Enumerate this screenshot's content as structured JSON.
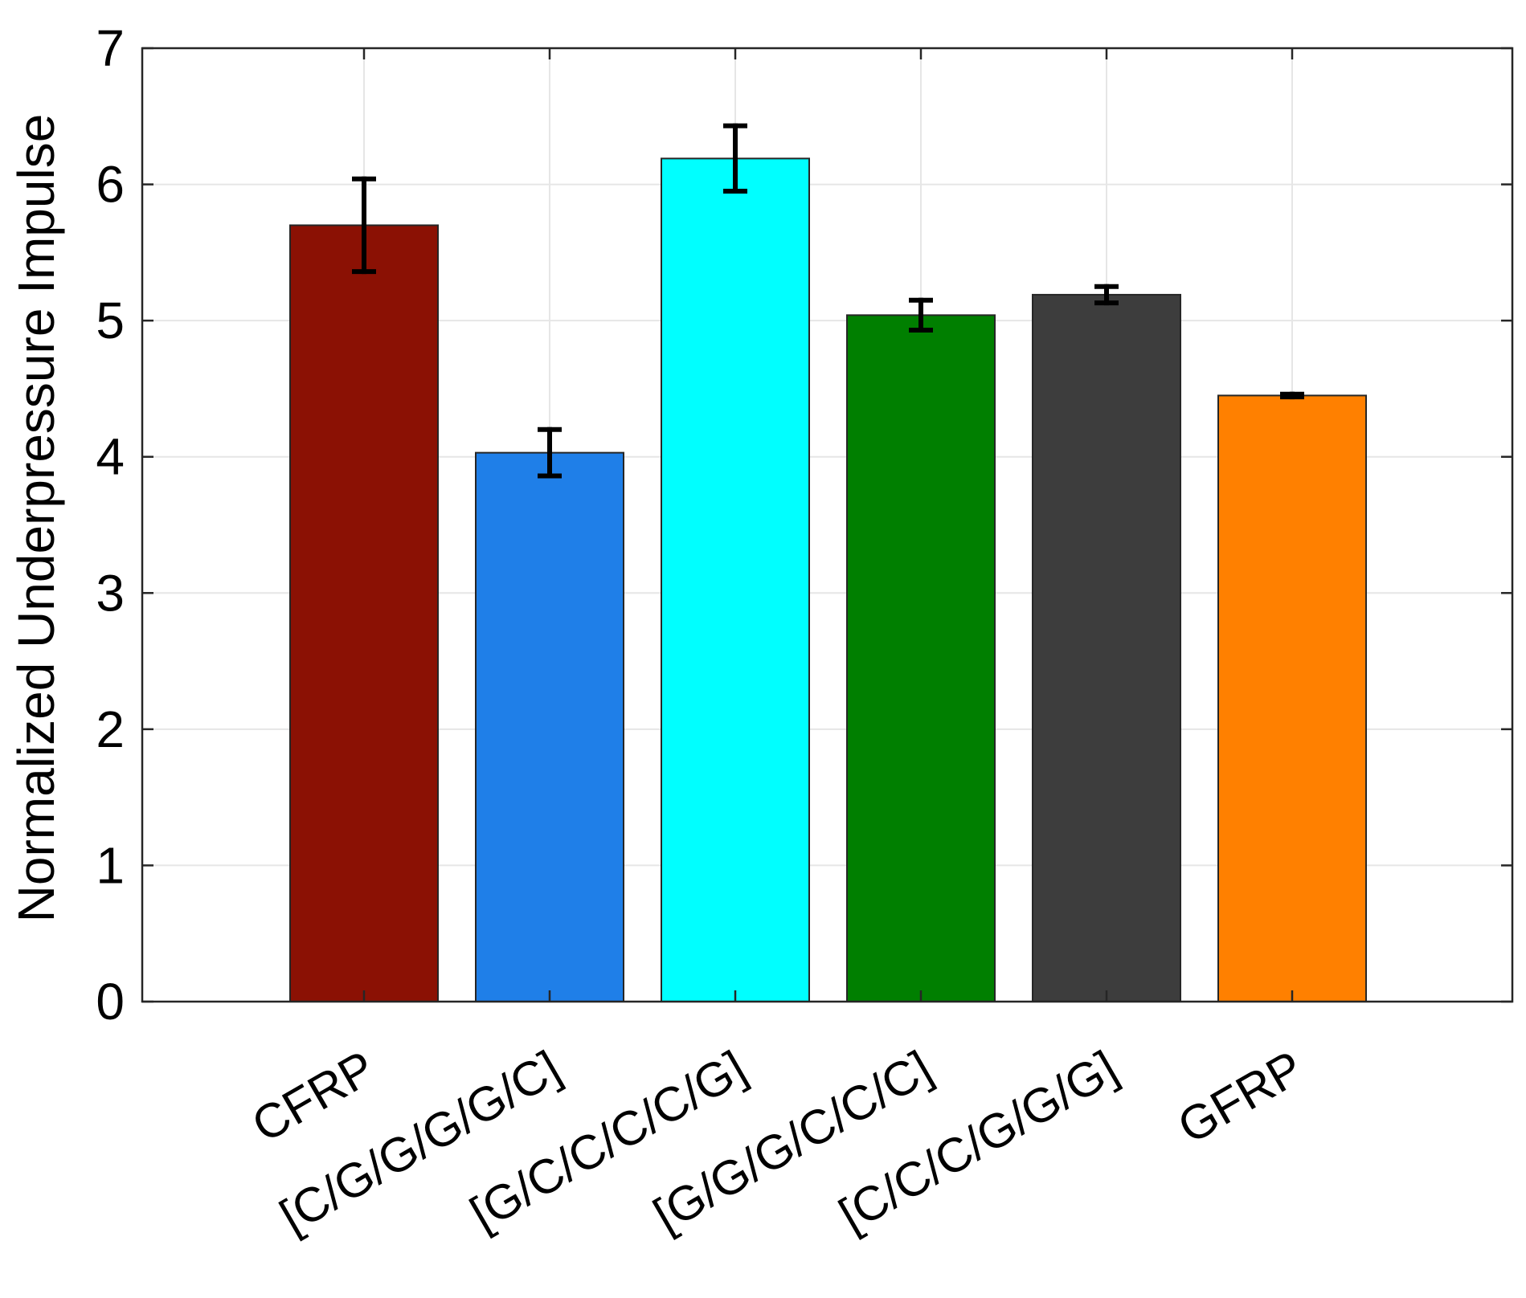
{
  "chart_data": {
    "type": "bar",
    "categories": [
      "CFRP",
      "[C/G/G/G/G/C]",
      "[G/C/C/C/C/G]",
      "[G/G/G/C/C/C]",
      "[C/C/C/G/G/G]",
      "GFRP"
    ],
    "values": [
      5.7,
      4.03,
      6.19,
      5.04,
      5.19,
      4.45
    ],
    "errors": [
      0.34,
      0.17,
      0.24,
      0.11,
      0.06,
      0.01
    ],
    "colors": [
      "#8b1104",
      "#1f7fe8",
      "#00ffff",
      "#007f00",
      "#3d3d3d",
      "#ff8000"
    ],
    "title": "",
    "xlabel": "",
    "ylabel": "Normalized Underpressure Impulse",
    "ylim": [
      0,
      7
    ],
    "yticks": [
      "0",
      "1",
      "2",
      "3",
      "4",
      "5",
      "6",
      "7"
    ],
    "grid": true,
    "legend": "none"
  }
}
